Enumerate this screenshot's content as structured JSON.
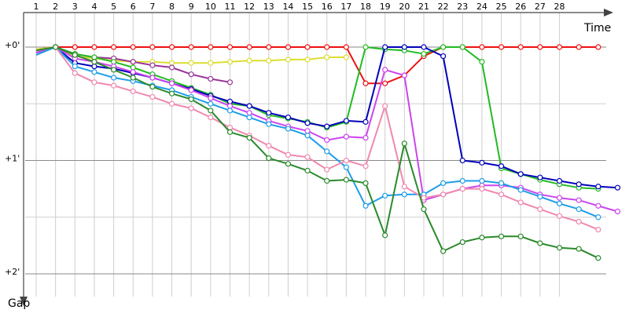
{
  "chart_data": {
    "type": "line",
    "title": "",
    "xlabel": "Time",
    "ylabel": "Gap",
    "x_ticks": [
      1,
      2,
      3,
      4,
      5,
      6,
      7,
      8,
      9,
      10,
      11,
      12,
      13,
      14,
      15,
      16,
      17,
      18,
      19,
      20,
      21,
      22,
      23,
      24,
      25,
      26,
      27,
      28
    ],
    "y_ticks": [
      {
        "value": 0,
        "label": "+0'"
      },
      {
        "value": 1,
        "label": "+1'"
      },
      {
        "value": 2,
        "label": "+2'"
      }
    ],
    "xlim": [
      0.5,
      29.5
    ],
    "ylim": [
      -0.2,
      2.3
    ],
    "y_inverted": true,
    "grid": true,
    "legend": "none",
    "series": [
      {
        "color": "#ee1111",
        "values": [
          0.02,
          0,
          0,
          0,
          0,
          0,
          0,
          0,
          0,
          0,
          0,
          0,
          0,
          0,
          0,
          0,
          0,
          0.32,
          0.32,
          0.25,
          0.08,
          0,
          0,
          0,
          0,
          0,
          0,
          0,
          0,
          0
        ]
      },
      {
        "color": "#dddd33",
        "values": [
          0.02,
          0,
          0.08,
          0.1,
          0.12,
          0.13,
          0.13,
          0.14,
          0.14,
          0.14,
          0.13,
          0.12,
          0.12,
          0.11,
          0.11,
          0.09,
          0.09
        ]
      },
      {
        "color": "#993399",
        "values": [
          0.05,
          0,
          0.06,
          0.09,
          0.1,
          0.13,
          0.16,
          0.18,
          0.24,
          0.28,
          0.31
        ]
      },
      {
        "color": "#22bb22",
        "values": [
          0.03,
          0,
          0.06,
          0.09,
          0.13,
          0.18,
          0.24,
          0.3,
          0.36,
          0.42,
          0.5,
          0.52,
          0.6,
          0.63,
          0.66,
          0.71,
          0.66,
          0,
          0.02,
          0.03,
          0.06,
          0,
          0,
          0.13,
          1.07,
          1.12,
          1.17,
          1.21,
          1.24,
          1.25
        ]
      },
      {
        "color": "#0000bb",
        "values": [
          0.05,
          0,
          0.14,
          0.17,
          0.19,
          0.23,
          0.27,
          0.32,
          0.37,
          0.43,
          0.48,
          0.52,
          0.58,
          0.62,
          0.67,
          0.7,
          0.65,
          0.66,
          0,
          0,
          0,
          0.08,
          1.0,
          1.02,
          1.05,
          1.12,
          1.15,
          1.18,
          1.21,
          1.23,
          1.24
        ]
      },
      {
        "color": "#cc44ee",
        "values": [
          0.05,
          0,
          0.1,
          0.13,
          0.17,
          0.22,
          0.27,
          0.32,
          0.38,
          0.45,
          0.52,
          0.58,
          0.65,
          0.7,
          0.74,
          0.82,
          0.79,
          0.8,
          0.2,
          0.25,
          1.35,
          1.3,
          1.25,
          1.22,
          1.22,
          1.24,
          1.3,
          1.33,
          1.35,
          1.4,
          1.45
        ]
      },
      {
        "color": "#1e9ee8",
        "values": [
          0.07,
          0,
          0.17,
          0.22,
          0.27,
          0.3,
          0.34,
          0.38,
          0.44,
          0.5,
          0.56,
          0.62,
          0.68,
          0.72,
          0.78,
          0.92,
          1.06,
          1.4,
          1.31,
          1.3,
          1.3,
          1.2,
          1.18,
          1.18,
          1.2,
          1.26,
          1.32,
          1.38,
          1.43,
          1.5
        ]
      },
      {
        "color": "#f088b0",
        "values": [
          0.03,
          0,
          0.23,
          0.31,
          0.34,
          0.39,
          0.44,
          0.5,
          0.54,
          0.62,
          0.71,
          0.78,
          0.87,
          0.95,
          0.97,
          1.08,
          1.0,
          1.05,
          0.52,
          1.23,
          1.33,
          1.3,
          1.25,
          1.25,
          1.3,
          1.37,
          1.43,
          1.49,
          1.54,
          1.61
        ]
      },
      {
        "color": "#2a8a2a",
        "values": [
          0.03,
          0,
          0.07,
          0.13,
          0.2,
          0.27,
          0.35,
          0.41,
          0.46,
          0.56,
          0.75,
          0.8,
          0.98,
          1.03,
          1.09,
          1.18,
          1.17,
          1.2,
          1.66,
          0.85,
          1.43,
          1.8,
          1.72,
          1.68,
          1.67,
          1.67,
          1.73,
          1.77,
          1.78,
          1.86
        ]
      }
    ]
  }
}
